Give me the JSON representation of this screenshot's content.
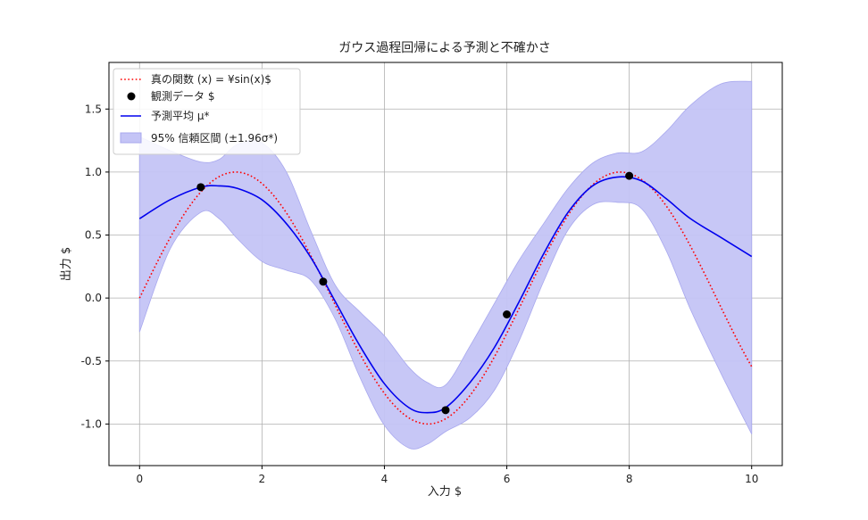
{
  "chart_data": {
    "type": "line",
    "title": "ガウス過程回帰による予測と不確かさ",
    "xlabel": "入力 $",
    "ylabel": "出力 $",
    "xlim": [
      -0.5,
      10.5
    ],
    "ylim": [
      -1.33,
      1.87
    ],
    "grid": true,
    "legend_position": "top-left",
    "x_ticks": [
      0,
      2,
      4,
      6,
      8,
      10
    ],
    "x_tick_labels": [
      "0",
      "2",
      "4",
      "6",
      "8",
      "10"
    ],
    "y_ticks": [
      -1.0,
      -0.5,
      0.0,
      0.5,
      1.0,
      1.5
    ],
    "y_tick_labels": [
      "-1.0",
      "-0.5",
      "0.0",
      "0.5",
      "1.0",
      "1.5"
    ],
    "colors": {
      "true_function": "#ff0000",
      "observations": "#000000",
      "mean": "#0000ee",
      "band": "#c4c4f6",
      "band_edge": "#a8a8ee"
    },
    "series": [
      {
        "name": "真の関数 (x) = ¥sin(x)$",
        "kind": "line",
        "style": "dotted",
        "function": "sin",
        "x_range": [
          0,
          10
        ]
      },
      {
        "name": "観測データ $",
        "kind": "scatter",
        "x": [
          1,
          3,
          5,
          6,
          8
        ],
        "y": [
          0.88,
          0.13,
          -0.89,
          -0.13,
          0.97
        ]
      },
      {
        "name": "予測平均 μ*",
        "kind": "line",
        "x": [
          0,
          0.5,
          1.0,
          1.3,
          1.6,
          2.0,
          2.4,
          2.8,
          3.2,
          3.6,
          4.0,
          4.4,
          4.7,
          5.0,
          5.4,
          5.8,
          6.2,
          6.6,
          7.0,
          7.4,
          7.8,
          8.2,
          8.6,
          9.0,
          9.5,
          10.0
        ],
        "y": [
          0.63,
          0.78,
          0.88,
          0.89,
          0.87,
          0.78,
          0.59,
          0.32,
          -0.03,
          -0.38,
          -0.68,
          -0.87,
          -0.91,
          -0.87,
          -0.67,
          -0.39,
          -0.03,
          0.35,
          0.68,
          0.89,
          0.96,
          0.93,
          0.79,
          0.63,
          0.48,
          0.33
        ]
      },
      {
        "name": "95% 信頼区間 (±1.96σ*)",
        "kind": "band",
        "x": [
          0,
          0.5,
          1.0,
          1.3,
          1.6,
          2.0,
          2.4,
          2.8,
          3.2,
          3.6,
          4.0,
          4.4,
          4.7,
          5.0,
          5.4,
          5.8,
          6.2,
          6.6,
          7.0,
          7.4,
          7.8,
          8.2,
          8.6,
          9.0,
          9.5,
          10.0
        ],
        "lower": [
          -0.27,
          0.39,
          0.68,
          0.63,
          0.47,
          0.29,
          0.22,
          0.14,
          -0.17,
          -0.63,
          -1.01,
          -1.19,
          -1.16,
          -1.06,
          -0.95,
          -0.73,
          -0.34,
          0.13,
          0.54,
          0.74,
          0.76,
          0.71,
          0.38,
          -0.09,
          -0.6,
          -1.08
        ],
        "upper": [
          1.28,
          1.17,
          1.08,
          1.1,
          1.22,
          1.23,
          1.0,
          0.53,
          0.1,
          -0.11,
          -0.3,
          -0.55,
          -0.67,
          -0.69,
          -0.38,
          -0.04,
          0.3,
          0.59,
          0.87,
          1.07,
          1.15,
          1.16,
          1.32,
          1.53,
          1.7,
          1.72
        ]
      }
    ]
  }
}
